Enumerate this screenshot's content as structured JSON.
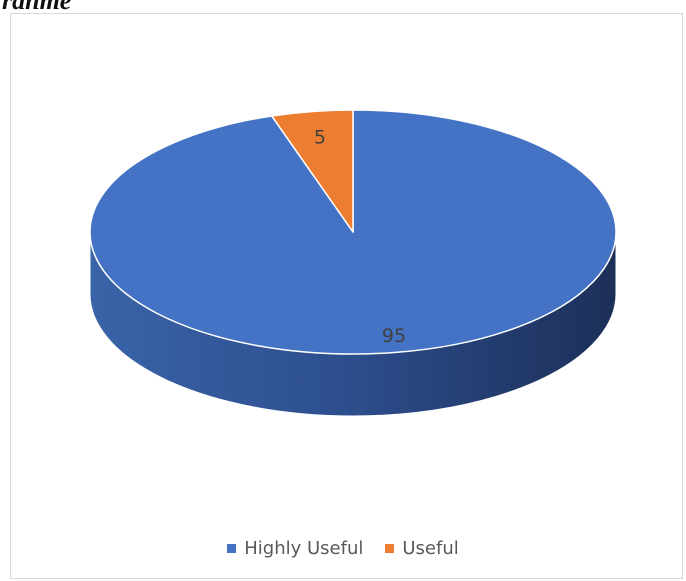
{
  "header": {
    "partial_text": "ranme"
  },
  "chart_data": {
    "type": "pie",
    "style": "3d",
    "title": "",
    "categories": [
      "Highly Useful",
      "Useful"
    ],
    "values": [
      95,
      5
    ],
    "data_labels": [
      "95",
      "5"
    ],
    "colors": [
      "#4472C4",
      "#ED7D31"
    ],
    "legend_position": "bottom"
  }
}
